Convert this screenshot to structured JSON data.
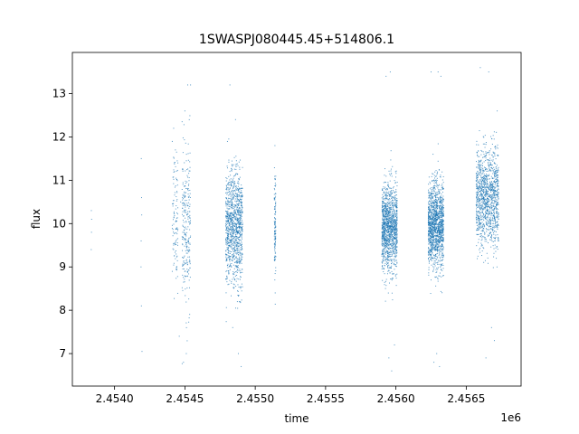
{
  "chart_data": {
    "type": "scatter",
    "title": "1SWASPJ080445.45+514806.1",
    "xlabel": "time",
    "ylabel": "flux",
    "x_offset_label": "1e6",
    "xlim": [
      2453700,
      2456890
    ],
    "ylim": [
      6.25,
      13.95
    ],
    "x_ticks": [
      2454000,
      2454500,
      2455000,
      2455500,
      2456000,
      2456500
    ],
    "x_tick_labels": [
      "2.4540",
      "2.4545",
      "2.4550",
      "2.4555",
      "2.4560",
      "2.4565"
    ],
    "y_ticks": [
      7,
      8,
      9,
      10,
      11,
      12,
      13
    ],
    "y_tick_labels": [
      "7",
      "8",
      "9",
      "10",
      "11",
      "12",
      "13"
    ],
    "grid": false,
    "legend": "none",
    "marker_color": "#1f77b4",
    "series": [
      {
        "points": [
          [
            2453835,
            10.3
          ],
          [
            2453836,
            9.8
          ],
          [
            2453834,
            9.4
          ],
          [
            2453837,
            10.1
          ],
          [
            2454190,
            11.5
          ],
          [
            2454192,
            10.6
          ],
          [
            2454188,
            9.0
          ],
          [
            2454195,
            7.05
          ],
          [
            2454191,
            8.1
          ],
          [
            2454193,
            10.2
          ],
          [
            2454189,
            9.6
          ],
          [
            2454420,
            12.2
          ],
          [
            2454450,
            11.4
          ],
          [
            2454470,
            10.5
          ],
          [
            2454500,
            12.6
          ],
          [
            2454520,
            13.2
          ],
          [
            2454540,
            13.2
          ],
          [
            2454460,
            7.4
          ],
          [
            2454490,
            6.8
          ],
          [
            2454510,
            7.0
          ],
          [
            2454820,
            13.2
          ],
          [
            2454860,
            12.4
          ],
          [
            2454880,
            7.0
          ],
          [
            2454900,
            6.7
          ],
          [
            2454840,
            7.6
          ],
          [
            2455140,
            11.8
          ],
          [
            2455142,
            8.4
          ],
          [
            2455141,
            10.0
          ],
          [
            2455930,
            13.4
          ],
          [
            2455960,
            13.5
          ],
          [
            2455950,
            6.9
          ],
          [
            2455970,
            6.6
          ],
          [
            2455990,
            7.2
          ],
          [
            2456250,
            13.5
          ],
          [
            2456300,
            13.5
          ],
          [
            2456320,
            13.4
          ],
          [
            2456270,
            6.8
          ],
          [
            2456310,
            6.7
          ],
          [
            2456290,
            7.0
          ],
          [
            2456600,
            13.6
          ],
          [
            2456660,
            13.5
          ],
          [
            2456720,
            12.6
          ],
          [
            2456640,
            6.9
          ],
          [
            2456700,
            7.3
          ],
          [
            2456680,
            7.6
          ]
        ]
      }
    ],
    "clusters": [
      {
        "t0": 2454410,
        "t1": 2454450,
        "y_mean": 10.2,
        "y_sd": 0.8,
        "n": 110
      },
      {
        "t0": 2454480,
        "t1": 2454540,
        "y_mean": 9.9,
        "y_sd": 0.9,
        "n": 260
      },
      {
        "t0": 2454790,
        "t1": 2454910,
        "y_mean": 9.9,
        "y_sd": 0.65,
        "n": 1100
      },
      {
        "t0": 2455136,
        "t1": 2455146,
        "y_mean": 9.9,
        "y_sd": 0.6,
        "n": 120
      },
      {
        "t0": 2455900,
        "t1": 2456010,
        "y_mean": 9.9,
        "y_sd": 0.5,
        "n": 1300
      },
      {
        "t0": 2456230,
        "t1": 2456340,
        "y_mean": 9.95,
        "y_sd": 0.5,
        "n": 1400
      },
      {
        "t0": 2456570,
        "t1": 2456730,
        "y_mean": 10.6,
        "y_sd": 0.55,
        "n": 1200
      }
    ]
  }
}
